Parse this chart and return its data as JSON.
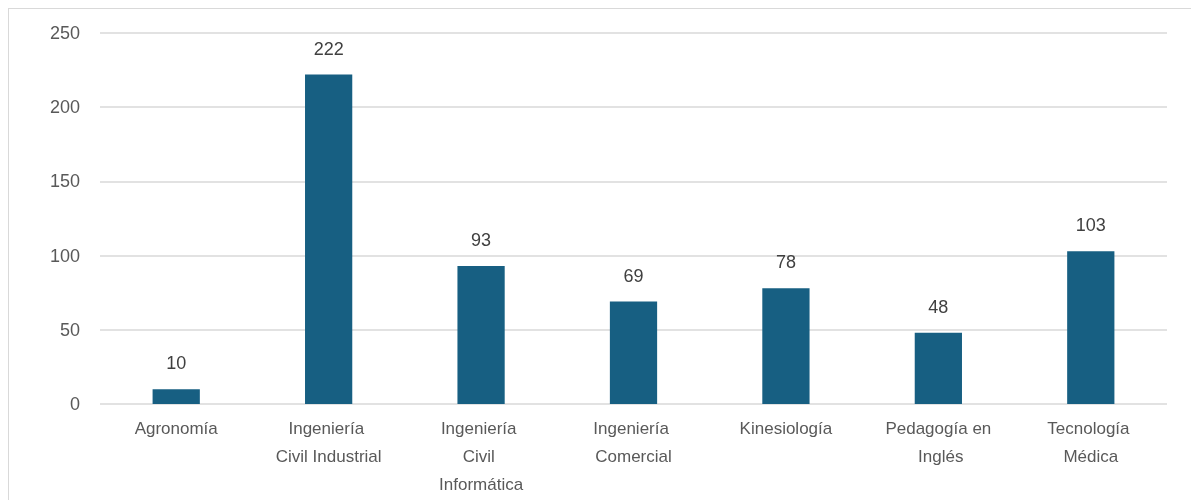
{
  "chart_data": {
    "type": "bar",
    "categories": [
      "Agronomía",
      "Ingeniería Civil Industrial",
      "Ingeniería Civil Informática",
      "Ingeniería Comercial",
      "Kinesiología",
      "Pedagogía en Inglés",
      "Tecnología Médica"
    ],
    "values": [
      10,
      222,
      93,
      69,
      78,
      48,
      103
    ],
    "color": "#175f82",
    "ylim": [
      0,
      250
    ],
    "yticks": [
      0,
      50,
      100,
      150,
      200,
      250
    ],
    "grid": "y",
    "data_labels": true
  }
}
